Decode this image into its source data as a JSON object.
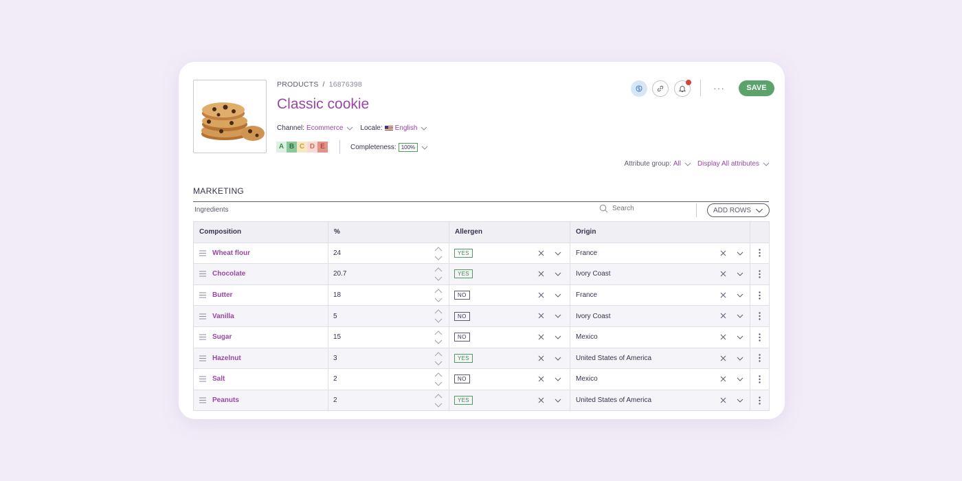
{
  "breadcrumb": {
    "root": "PRODUCTS",
    "separator": "/",
    "id": "16876398"
  },
  "product": {
    "title": "Classic cookie",
    "image_alt": "cookies"
  },
  "context": {
    "channel_label": "Channel:",
    "channel_value": "Ecommerce",
    "locale_label": "Locale:",
    "locale_value": "English",
    "locale_flag_icon": "us-flag-icon"
  },
  "quality_grades": [
    "A",
    "B",
    "C",
    "D",
    "E"
  ],
  "completeness": {
    "label": "Completeness:",
    "value": "100%"
  },
  "toolbar": {
    "icons": [
      "brain-icon",
      "link-icon",
      "bell-icon"
    ],
    "more_label": "···",
    "save_label": "SAVE"
  },
  "filters": {
    "attribute_group_label": "Attribute group:",
    "attribute_group_value": "All",
    "display_label": "Display All attributes"
  },
  "section": {
    "title": "MARKETING"
  },
  "ingredients": {
    "label": "Ingredients",
    "search_placeholder": "Search",
    "add_rows_label": "ADD ROWS",
    "columns": [
      "Composition",
      "%",
      "Allergen",
      "Origin"
    ],
    "rows": [
      {
        "name": "Wheat flour",
        "percent": "24",
        "allergen": "YES",
        "origin": "France"
      },
      {
        "name": "Chocolate",
        "percent": "20.7",
        "allergen": "YES",
        "origin": "Ivory Coast"
      },
      {
        "name": "Butter",
        "percent": "18",
        "allergen": "NO",
        "origin": "France"
      },
      {
        "name": "Vanilla",
        "percent": "5",
        "allergen": "NO",
        "origin": "Ivory Coast"
      },
      {
        "name": "Sugar",
        "percent": "15",
        "allergen": "NO",
        "origin": "Mexico"
      },
      {
        "name": "Hazelnut",
        "percent": "3",
        "allergen": "YES",
        "origin": "United States of America"
      },
      {
        "name": "Salt",
        "percent": "2",
        "allergen": "NO",
        "origin": "Mexico"
      },
      {
        "name": "Peanuts",
        "percent": "2",
        "allergen": "YES",
        "origin": "United States of America"
      }
    ]
  },
  "colors": {
    "background": "#f2ecf8",
    "accent_purple": "#9a46a6",
    "save_green": "#5ba36b",
    "yes_green": "#4d9c5e",
    "notification_red": "#d2473a"
  }
}
